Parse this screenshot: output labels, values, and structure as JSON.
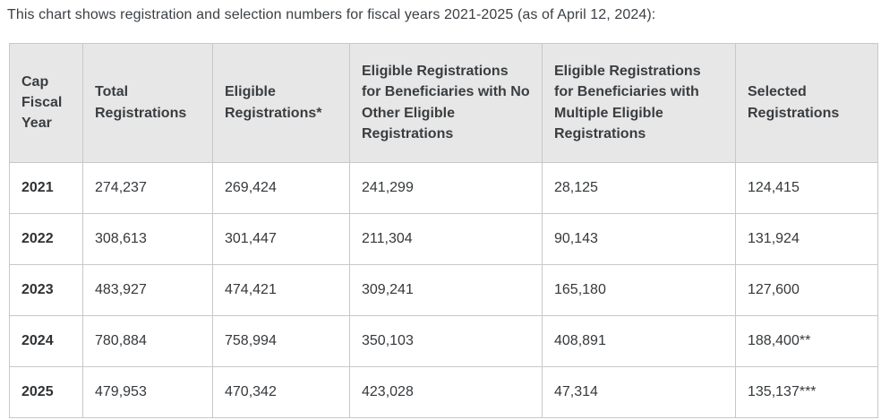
{
  "caption": "This chart shows registration and selection numbers for fiscal years 2021-2025 (as of April 12, 2024):",
  "colors": {
    "header_bg": "#e7e7e7",
    "border": "#c8c8c8",
    "body_text": "#35383b",
    "caption_text": "#3b4045",
    "background": "#ffffff"
  },
  "chart_data": {
    "type": "table",
    "title": "This chart shows registration and selection numbers for fiscal years 2021-2025 (as of April 12, 2024):",
    "columns": [
      "Cap Fiscal Year",
      "Total Registrations",
      "Eligible Registrations*",
      "Eligible Registrations for Beneficiaries with No Other Eligible Registrations",
      "Eligible Registrations for Beneficiaries with Multiple Eligible Registrations",
      "Selected Registrations"
    ],
    "rows": [
      {
        "cells": [
          "2021",
          "274,237",
          "269,424",
          "241,299",
          "28,125",
          "124,415"
        ]
      },
      {
        "cells": [
          "2022",
          "308,613",
          "301,447",
          "211,304",
          "90,143",
          "131,924"
        ]
      },
      {
        "cells": [
          "2023",
          "483,927",
          "474,421",
          "309,241",
          "165,180",
          "127,600"
        ]
      },
      {
        "cells": [
          "2024",
          "780,884",
          "758,994",
          "350,103",
          "408,891",
          "188,400**"
        ]
      },
      {
        "cells": [
          "2025",
          "479,953",
          "470,342",
          "423,028",
          "47,314",
          "135,137***"
        ]
      }
    ],
    "numeric": {
      "categories": [
        2021,
        2022,
        2023,
        2024,
        2025
      ],
      "series": [
        {
          "name": "Total Registrations",
          "values": [
            274237,
            308613,
            483927,
            780884,
            479953
          ]
        },
        {
          "name": "Eligible Registrations",
          "values": [
            269424,
            301447,
            474421,
            758994,
            470342
          ]
        },
        {
          "name": "Eligible Registrations for Beneficiaries with No Other Eligible Registrations",
          "values": [
            241299,
            211304,
            309241,
            350103,
            423028
          ]
        },
        {
          "name": "Eligible Registrations for Beneficiaries with Multiple Eligible Registrations",
          "values": [
            28125,
            90143,
            165180,
            408891,
            47314
          ]
        },
        {
          "name": "Selected Registrations",
          "values": [
            124415,
            131924,
            127600,
            188400,
            135137
          ]
        }
      ],
      "notes": [
        "* footnote marker shown in header",
        "** marker on FY2024 selected",
        "*** marker on FY2025 selected"
      ]
    }
  }
}
